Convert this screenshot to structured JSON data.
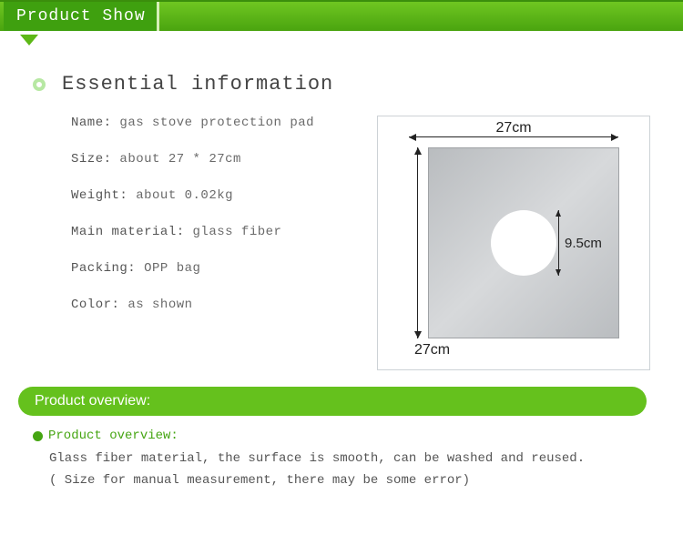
{
  "colors": {
    "accent_green": "#65c11d",
    "dark_green": "#3fa00f",
    "pale_ring": "#b7e8a3",
    "text": "#555555"
  },
  "header": {
    "title": "Product Show"
  },
  "essential": {
    "title": "Essential information",
    "fields": [
      {
        "label": "Name:",
        "value": " gas stove protection pad"
      },
      {
        "label": "Size:",
        "value": " about 27 * 27cm"
      },
      {
        "label": "Weight:",
        "value": " about 0.02kg"
      },
      {
        "label": "Main material:",
        "value": " glass fiber"
      },
      {
        "label": "Packing:",
        "value": " OPP bag"
      },
      {
        "label": "Color:",
        "value": " as shown"
      }
    ]
  },
  "diagram": {
    "width_label": "27cm",
    "height_label": "27cm",
    "hole_label": "9.5cm",
    "pad_color": "#c5c8ca",
    "hole_diameter_ratio": 0.35
  },
  "overview": {
    "pill_label": "Product overview:",
    "sub_label": "Product overview:",
    "line1": "Glass fiber material, the surface is smooth, can be washed and reused.",
    "line2": "( Size for manual measurement, there may be some error)"
  }
}
